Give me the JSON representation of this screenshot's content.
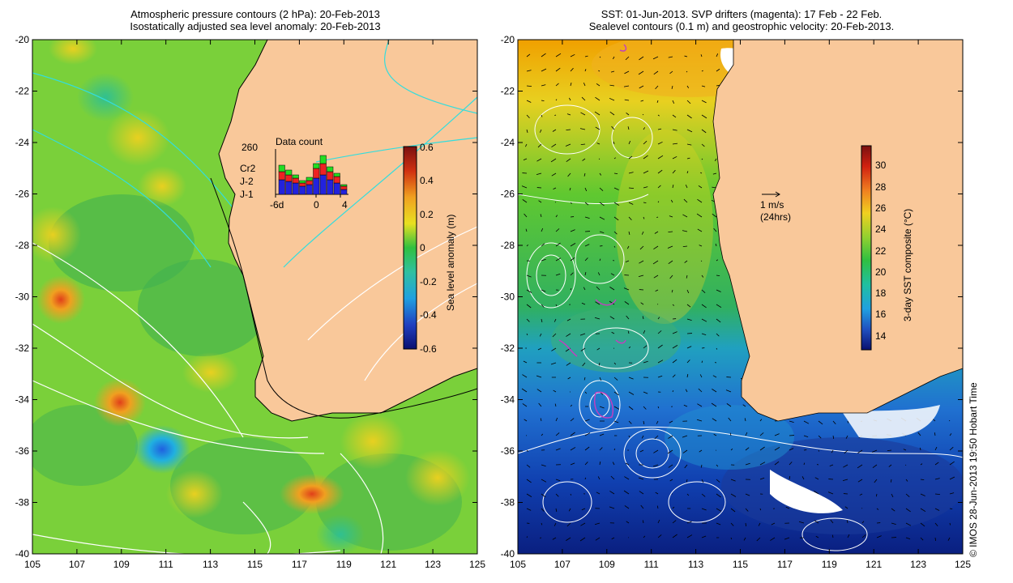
{
  "left_panel": {
    "title_line1": "Atmospheric pressure contours (2 hPa): 20-Feb-2013",
    "title_line2": "Isostatically adjusted sea level anomaly: 20-Feb-2013",
    "x_ticks": [
      "105",
      "107",
      "109",
      "111",
      "113",
      "115",
      "117",
      "119",
      "121",
      "123",
      "125"
    ],
    "y_ticks": [
      "-20",
      "-22",
      "-24",
      "-26",
      "-28",
      "-30",
      "-32",
      "-34",
      "-36",
      "-38",
      "-40"
    ],
    "colorbar": {
      "label": "Sea level anomaly (m)",
      "ticks": [
        "0.6",
        "0.4",
        "0.2",
        "0",
        "-0.2",
        "-0.4",
        "-0.6"
      ]
    },
    "data_count": {
      "title": "Data count",
      "max_label": "260",
      "x_ticks": [
        "-6d",
        "0",
        "4"
      ],
      "legend": [
        {
          "name": "Cr2",
          "color": "#22dd22"
        },
        {
          "name": "J-2",
          "color": "#ee2222"
        },
        {
          "name": "J-1",
          "color": "#2222dd"
        }
      ]
    }
  },
  "right_panel": {
    "title_line1": "SST: 01-Jun-2013. SVP drifters (magenta): 17 Feb - 22 Feb.",
    "title_line2": "Sealevel contours (0.1 m) and geostrophic velocity: 20-Feb-2013.",
    "x_ticks": [
      "105",
      "107",
      "109",
      "111",
      "113",
      "115",
      "117",
      "119",
      "121",
      "123",
      "125"
    ],
    "y_ticks": [
      "-20",
      "-22",
      "-24",
      "-26",
      "-28",
      "-30",
      "-32",
      "-34",
      "-36",
      "-38",
      "-40"
    ],
    "colorbar": {
      "label": "3-day SST composite (°C)",
      "ticks": [
        "30",
        "28",
        "26",
        "24",
        "22",
        "20",
        "18",
        "16",
        "14"
      ]
    },
    "velocity_scale": {
      "label1": "1 m/s",
      "label2": "(24hrs)"
    }
  },
  "credit": "© IMOS 28-Jun-2013 19:50 Hobart Time",
  "colors": {
    "land": "#f9c89a",
    "coast": "#000000",
    "contour_white": "#ffffff",
    "contour_cyan": "#33dddd"
  }
}
